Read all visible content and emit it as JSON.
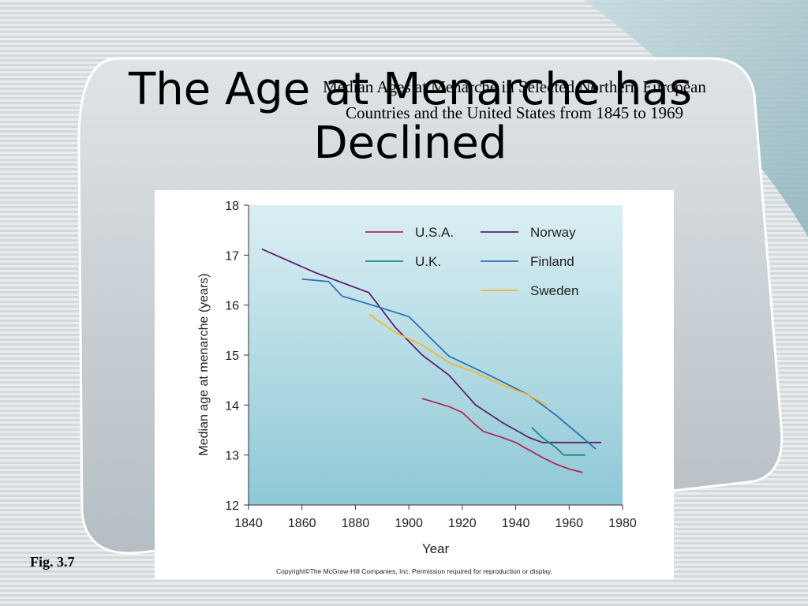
{
  "slide": {
    "title": "The Age at Menarche has Declined",
    "fig_label": "Fig. 3.7",
    "copyright": "Copyright©The McGraw-Hill Companies, Inc.  Permission required for reproduction or display."
  },
  "chart_data": {
    "type": "line",
    "title": "Median Ages at Menarche in Selected Northern European Countries and the United States from 1845 to 1969",
    "xlabel": "Year",
    "ylabel": "Median age at menarche (years)",
    "xlim": [
      1840,
      1980
    ],
    "ylim": [
      12,
      18
    ],
    "xticks": [
      1840,
      1860,
      1880,
      1900,
      1920,
      1940,
      1960,
      1980
    ],
    "yticks": [
      12,
      13,
      14,
      15,
      16,
      17,
      18
    ],
    "grid": false,
    "legend_position": "top-right",
    "series": [
      {
        "name": "U.S.A.",
        "color": "#b5285a",
        "points": [
          [
            1905,
            14.13
          ],
          [
            1910,
            14.05
          ],
          [
            1915,
            13.97
          ],
          [
            1920,
            13.85
          ],
          [
            1925,
            13.6
          ],
          [
            1928,
            13.47
          ],
          [
            1935,
            13.35
          ],
          [
            1940,
            13.25
          ],
          [
            1945,
            13.1
          ],
          [
            1950,
            12.95
          ],
          [
            1955,
            12.82
          ],
          [
            1960,
            12.72
          ],
          [
            1965,
            12.65
          ]
        ]
      },
      {
        "name": "Norway",
        "color": "#5b2270",
        "points": [
          [
            1845,
            17.12
          ],
          [
            1865,
            16.65
          ],
          [
            1885,
            16.25
          ],
          [
            1895,
            15.55
          ],
          [
            1905,
            15.0
          ],
          [
            1915,
            14.6
          ],
          [
            1925,
            14.0
          ],
          [
            1935,
            13.65
          ],
          [
            1945,
            13.35
          ],
          [
            1950,
            13.25
          ],
          [
            1960,
            13.25
          ],
          [
            1972,
            13.25
          ]
        ]
      },
      {
        "name": "U.K.",
        "color": "#1f8a76",
        "points": [
          [
            1946,
            13.55
          ],
          [
            1950,
            13.35
          ],
          [
            1955,
            13.15
          ],
          [
            1958,
            13.0
          ],
          [
            1966,
            13.0
          ]
        ]
      },
      {
        "name": "Finland",
        "color": "#2f74b5",
        "points": [
          [
            1860,
            16.52
          ],
          [
            1870,
            16.47
          ],
          [
            1875,
            16.18
          ],
          [
            1885,
            16.02
          ],
          [
            1900,
            15.77
          ],
          [
            1915,
            14.98
          ],
          [
            1930,
            14.6
          ],
          [
            1945,
            14.2
          ],
          [
            1955,
            13.8
          ],
          [
            1965,
            13.35
          ],
          [
            1970,
            13.12
          ]
        ]
      },
      {
        "name": "Sweden",
        "color": "#f2b830",
        "points": [
          [
            1885,
            15.82
          ],
          [
            1895,
            15.45
          ],
          [
            1905,
            15.2
          ],
          [
            1915,
            14.85
          ],
          [
            1925,
            14.65
          ],
          [
            1935,
            14.4
          ],
          [
            1945,
            14.2
          ],
          [
            1952,
            13.98
          ]
        ]
      }
    ]
  }
}
